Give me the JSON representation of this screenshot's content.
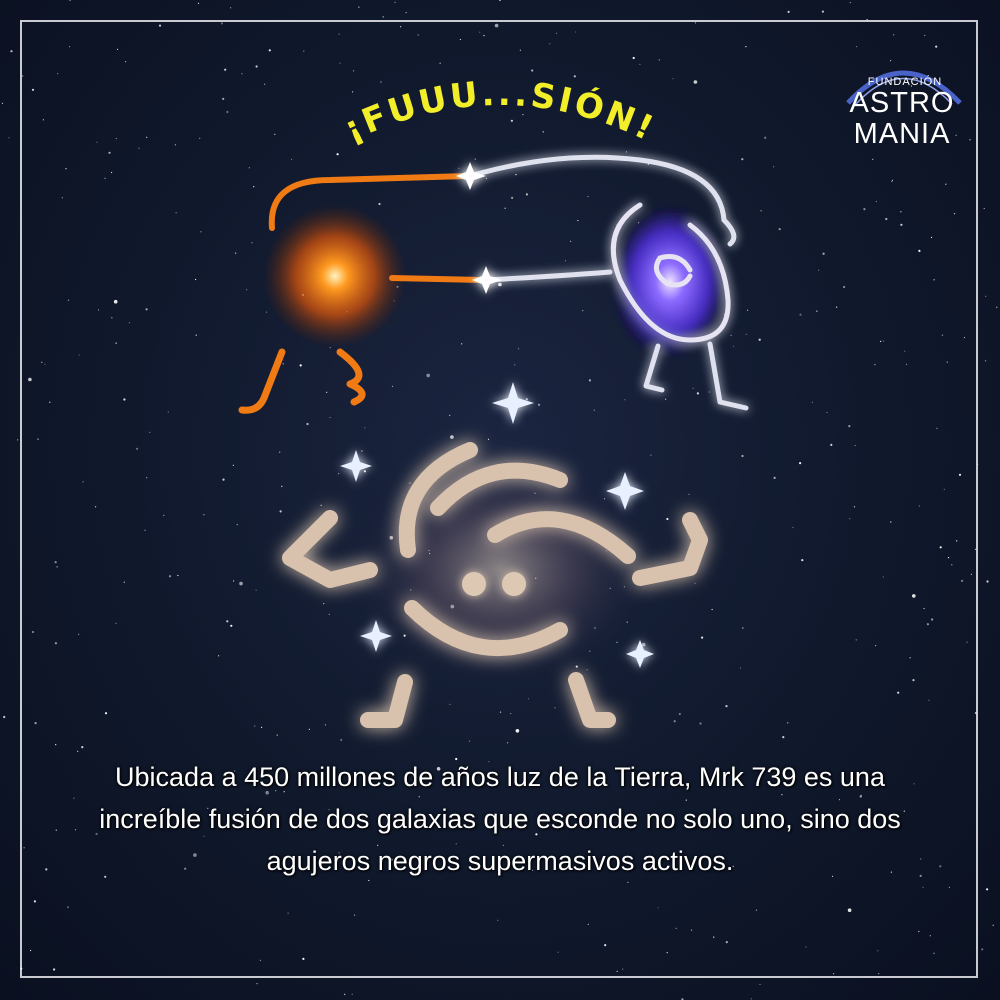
{
  "logo": {
    "small": "FUNDACIÓN",
    "line1": "ASTRO",
    "line2": "MANIA"
  },
  "headline": "¡FUUU...SIÓN!",
  "caption": {
    "line1": "Ubicada a 450 millones de años luz de la Tierra, Mrk 739 es una",
    "line2": "increíble fusión de dos galaxias que esconde no solo uno, sino dos",
    "line3": "agujeros negros supermasivos activos."
  },
  "colors": {
    "background": "#111a2e",
    "headline": "#f2ee2a",
    "orange_galaxy": "#f07a14",
    "blue_galaxy": "#6a4ff0",
    "merged_galaxy": "#d8c2ae",
    "logo_arc": "#4a63c9"
  }
}
